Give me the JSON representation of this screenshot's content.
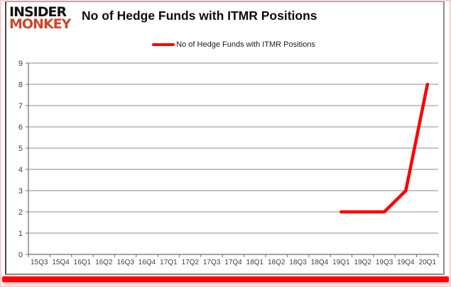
{
  "brand": {
    "line1": "INSIDER",
    "line2": "MONKEY",
    "line1_color": "#121212",
    "line2_color": "#c8472e"
  },
  "title": "No of Hedge Funds with ITMR Positions",
  "legend": {
    "label": "No of Hedge Funds with ITMR Positions",
    "swatch_color": "#ff0000"
  },
  "chart_data": {
    "type": "line",
    "title": "No of Hedge Funds with ITMR Positions",
    "categories": [
      "15Q3",
      "15Q4",
      "16Q1",
      "16Q2",
      "16Q3",
      "16Q4",
      "17Q1",
      "17Q2",
      "17Q3",
      "17Q4",
      "18Q1",
      "18Q2",
      "18Q3",
      "18Q4",
      "19Q1",
      "19Q2",
      "19Q3",
      "19Q4",
      "20Q1"
    ],
    "series": [
      {
        "name": "No of Hedge Funds with ITMR Positions",
        "color": "#ff0000",
        "values": [
          null,
          null,
          null,
          null,
          null,
          null,
          null,
          null,
          null,
          null,
          null,
          null,
          null,
          null,
          2,
          2,
          2,
          3,
          8
        ]
      }
    ],
    "xlabel": "",
    "ylabel": "",
    "ylim": [
      0,
      9
    ],
    "ytick_step": 1,
    "grid": true,
    "legend_position": "top-center"
  },
  "colors": {
    "line": "#ff0000",
    "gridline": "#8e8e8e",
    "axis": "#6e6e6e",
    "frame_border": "#8c8c8c",
    "bottom_bar": "#fe0000",
    "outer_edge": "#f6d2d2"
  }
}
